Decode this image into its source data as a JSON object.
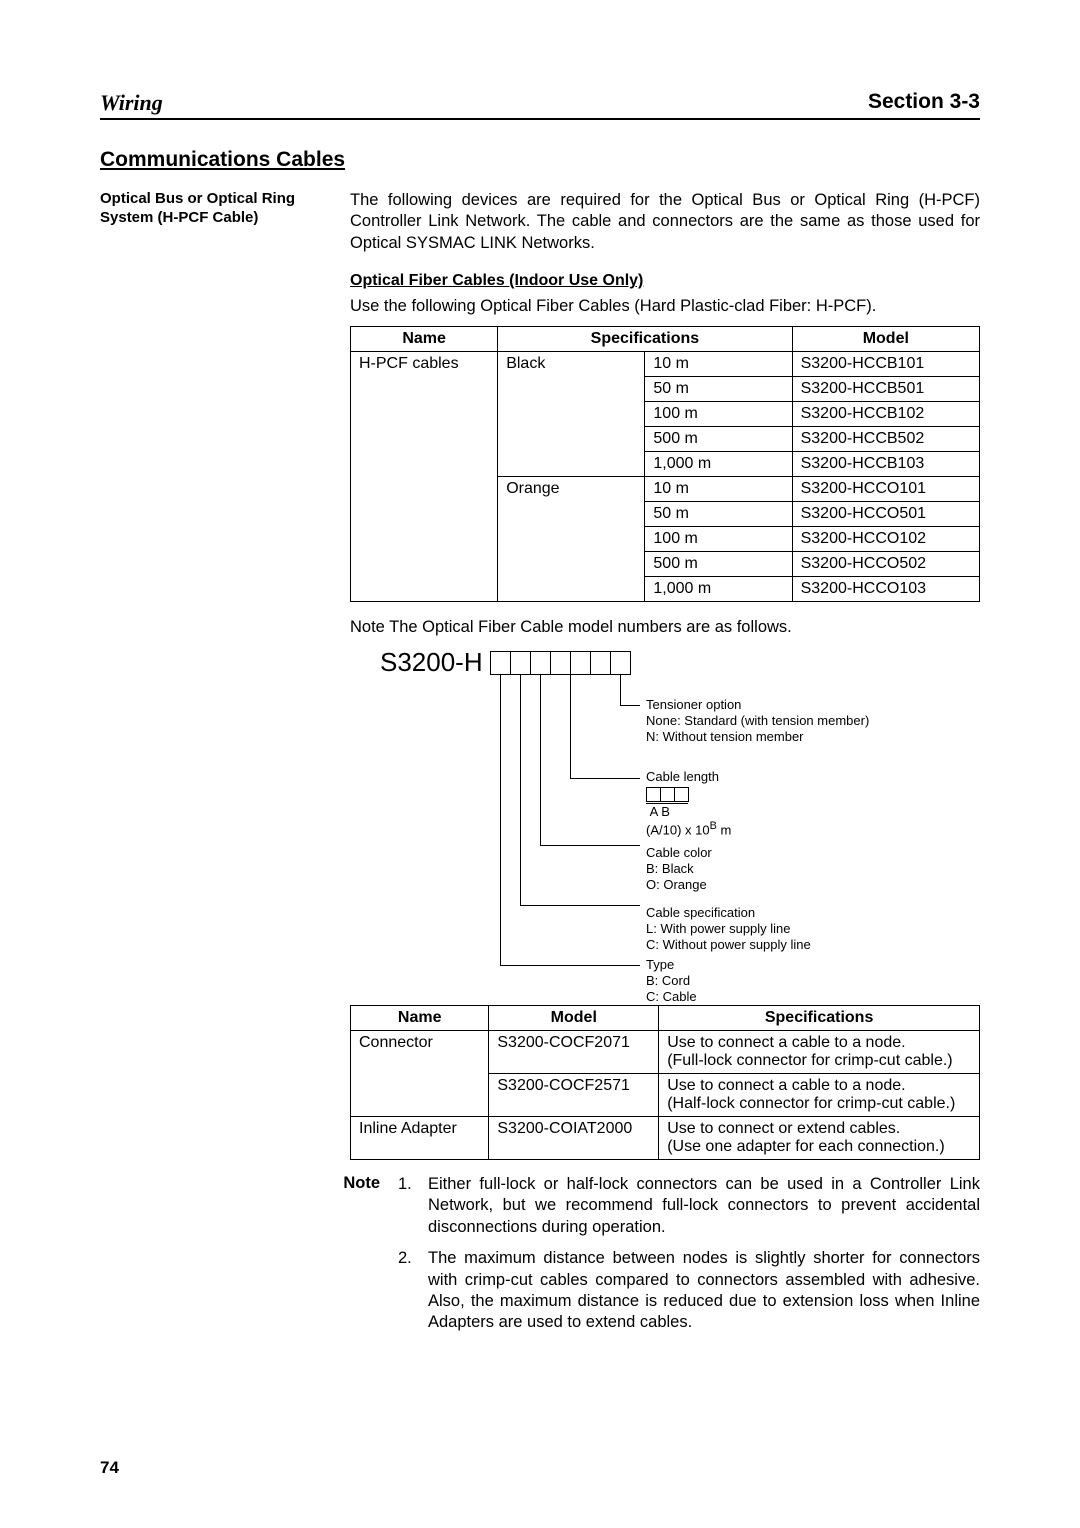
{
  "header": {
    "left": "Wiring",
    "right": "Section 3-3"
  },
  "sectionTitle": "Communications Cables",
  "sideHeading": "Optical Bus or Optical Ring System (H-PCF Cable)",
  "intro": "The following devices are required for the Optical Bus or Optical Ring (H-PCF) Controller Link Network. The cable and connectors are the same as those used for Optical SYSMAC LINK Networks.",
  "subHeading": "Optical Fiber Cables (Indoor Use Only)",
  "sub2": "Use the following Optical Fiber Cables (Hard Plastic-clad Fiber: H-PCF).",
  "table1": {
    "headers": [
      "Name",
      "Specifications",
      "Model"
    ],
    "name": "H-PCF cables",
    "groups": [
      {
        "spec": "Black",
        "rows": [
          {
            "len": "10 m",
            "model": "S3200-HCCB101"
          },
          {
            "len": "50 m",
            "model": "S3200-HCCB501"
          },
          {
            "len": "100 m",
            "model": "S3200-HCCB102"
          },
          {
            "len": "500 m",
            "model": "S3200-HCCB502"
          },
          {
            "len": "1,000 m",
            "model": "S3200-HCCB103"
          }
        ]
      },
      {
        "spec": "Orange",
        "rows": [
          {
            "len": "10 m",
            "model": "S3200-HCCO101"
          },
          {
            "len": "50 m",
            "model": "S3200-HCCO501"
          },
          {
            "len": "100 m",
            "model": "S3200-HCCO102"
          },
          {
            "len": "500 m",
            "model": "S3200-HCCO502"
          },
          {
            "len": "1,000 m",
            "model": "S3200-HCCO103"
          }
        ]
      }
    ]
  },
  "noteLineLabel": "Note",
  "noteLine": "The Optical Fiber Cable model numbers are as follows.",
  "diagram": {
    "prefix": "S3200-H",
    "items": [
      {
        "title": "Tensioner option",
        "lines": [
          "None:  Standard (with tension member)",
          "N:       Without tension member"
        ]
      },
      {
        "title": "Cable length",
        "sub": "A  B",
        "formula": "(A/10) x 10",
        "exp": "B",
        "formula2": " m"
      },
      {
        "title": "Cable color",
        "lines": [
          "B:   Black",
          "O:  Orange"
        ]
      },
      {
        "title": "Cable specification",
        "lines": [
          "L:   With power supply line",
          "C:  Without power supply line"
        ]
      },
      {
        "title": "Type",
        "lines": [
          "B:   Cord",
          "C:  Cable"
        ]
      }
    ]
  },
  "table2": {
    "headers": [
      "Name",
      "Model",
      "Specifications"
    ],
    "rows": [
      {
        "name": "Connector",
        "model": "S3200-COCF2071",
        "spec": "Use to connect a cable to a node.\n(Full-lock connector for crimp-cut cable.)",
        "rowspan": 2
      },
      {
        "name": "",
        "model": "S3200-COCF2571",
        "spec": "Use to connect a cable to a node.\n(Half-lock connector for crimp-cut cable.)"
      },
      {
        "name": "Inline Adapter",
        "model": "S3200-COIAT2000",
        "spec": "Use to connect or extend cables.\n(Use one adapter for each connection.)"
      }
    ]
  },
  "noteBlock": {
    "label": "Note",
    "items": [
      {
        "n": "1.",
        "t": "Either full-lock or half-lock connectors can be used in a Controller Link Network, but we recommend full-lock connectors to prevent accidental disconnections during operation."
      },
      {
        "n": "2.",
        "t": "The maximum distance between nodes is slightly shorter for connectors with crimp-cut cables compared to connectors assembled with adhesive. Also, the maximum distance is reduced due to extension loss when Inline Adapters are used to extend cables."
      }
    ]
  },
  "pageNum": "74"
}
